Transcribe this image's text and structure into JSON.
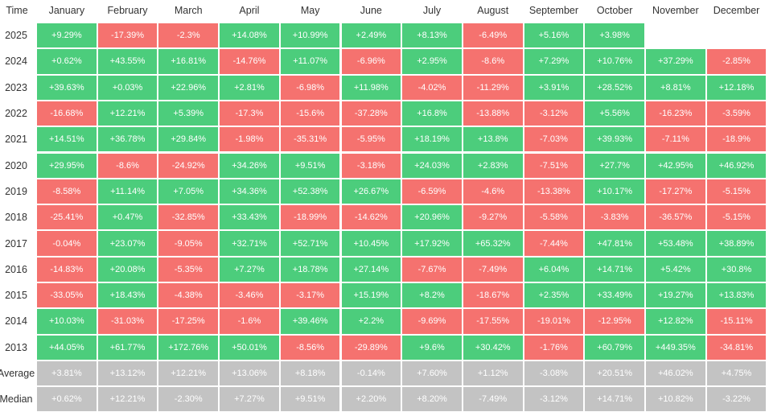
{
  "table": {
    "header": [
      "Time",
      "January",
      "February",
      "March",
      "April",
      "May",
      "June",
      "July",
      "August",
      "September",
      "October",
      "November",
      "December"
    ],
    "rows": [
      {
        "label": "2025",
        "cells": [
          "+9.29%",
          "-17.39%",
          "-2.3%",
          "+14.08%",
          "+10.99%",
          "+2.49%",
          "+8.13%",
          "-6.49%",
          "+5.16%",
          "+3.98%"
        ]
      },
      {
        "label": "2024",
        "cells": [
          "+0.62%",
          "+43.55%",
          "+16.81%",
          "-14.76%",
          "+11.07%",
          "-6.96%",
          "+2.95%",
          "-8.6%",
          "+7.29%",
          "+10.76%",
          "+37.29%",
          "-2.85%"
        ]
      },
      {
        "label": "2023",
        "cells": [
          "+39.63%",
          "+0.03%",
          "+22.96%",
          "+2.81%",
          "-6.98%",
          "+11.98%",
          "-4.02%",
          "-11.29%",
          "+3.91%",
          "+28.52%",
          "+8.81%",
          "+12.18%"
        ]
      },
      {
        "label": "2022",
        "cells": [
          "-16.68%",
          "+12.21%",
          "+5.39%",
          "-17.3%",
          "-15.6%",
          "-37.28%",
          "+16.8%",
          "-13.88%",
          "-3.12%",
          "+5.56%",
          "-16.23%",
          "-3.59%"
        ]
      },
      {
        "label": "2021",
        "cells": [
          "+14.51%",
          "+36.78%",
          "+29.84%",
          "-1.98%",
          "-35.31%",
          "-5.95%",
          "+18.19%",
          "+13.8%",
          "-7.03%",
          "+39.93%",
          "-7.11%",
          "-18.9%"
        ]
      },
      {
        "label": "2020",
        "cells": [
          "+29.95%",
          "-8.6%",
          "-24.92%",
          "+34.26%",
          "+9.51%",
          "-3.18%",
          "+24.03%",
          "+2.83%",
          "-7.51%",
          "+27.7%",
          "+42.95%",
          "+46.92%"
        ]
      },
      {
        "label": "2019",
        "cells": [
          "-8.58%",
          "+11.14%",
          "+7.05%",
          "+34.36%",
          "+52.38%",
          "+26.67%",
          "-6.59%",
          "-4.6%",
          "-13.38%",
          "+10.17%",
          "-17.27%",
          "-5.15%"
        ]
      },
      {
        "label": "2018",
        "cells": [
          "-25.41%",
          "+0.47%",
          "-32.85%",
          "+33.43%",
          "-18.99%",
          "-14.62%",
          "+20.96%",
          "-9.27%",
          "-5.58%",
          "-3.83%",
          "-36.57%",
          "-5.15%"
        ]
      },
      {
        "label": "2017",
        "cells": [
          "-0.04%",
          "+23.07%",
          "-9.05%",
          "+32.71%",
          "+52.71%",
          "+10.45%",
          "+17.92%",
          "+65.32%",
          "-7.44%",
          "+47.81%",
          "+53.48%",
          "+38.89%"
        ]
      },
      {
        "label": "2016",
        "cells": [
          "-14.83%",
          "+20.08%",
          "-5.35%",
          "+7.27%",
          "+18.78%",
          "+27.14%",
          "-7.67%",
          "-7.49%",
          "+6.04%",
          "+14.71%",
          "+5.42%",
          "+30.8%"
        ]
      },
      {
        "label": "2015",
        "cells": [
          "-33.05%",
          "+18.43%",
          "-4.38%",
          "-3.46%",
          "-3.17%",
          "+15.19%",
          "+8.2%",
          "-18.67%",
          "+2.35%",
          "+33.49%",
          "+19.27%",
          "+13.83%"
        ]
      },
      {
        "label": "2014",
        "cells": [
          "+10.03%",
          "-31.03%",
          "-17.25%",
          "-1.6%",
          "+39.46%",
          "+2.2%",
          "-9.69%",
          "-17.55%",
          "-19.01%",
          "-12.95%",
          "+12.82%",
          "-15.11%"
        ]
      },
      {
        "label": "2013",
        "cells": [
          "+44.05%",
          "+61.77%",
          "+172.76%",
          "+50.01%",
          "-8.56%",
          "-29.89%",
          "+9.6%",
          "+30.42%",
          "-1.76%",
          "+60.79%",
          "+449.35%",
          "-34.81%"
        ]
      }
    ],
    "summary_rows": [
      {
        "label": "Average",
        "cells": [
          "+3.81%",
          "+13.12%",
          "+12.21%",
          "+13.06%",
          "+8.18%",
          "-0.14%",
          "+7.60%",
          "+1.12%",
          "-3.08%",
          "+20.51%",
          "+46.02%",
          "+4.75%"
        ]
      },
      {
        "label": "Median",
        "cells": [
          "+0.62%",
          "+12.21%",
          "-2.30%",
          "+7.27%",
          "+9.51%",
          "+2.20%",
          "+8.20%",
          "-7.49%",
          "-3.12%",
          "+14.71%",
          "+10.82%",
          "-3.22%"
        ]
      }
    ]
  }
}
